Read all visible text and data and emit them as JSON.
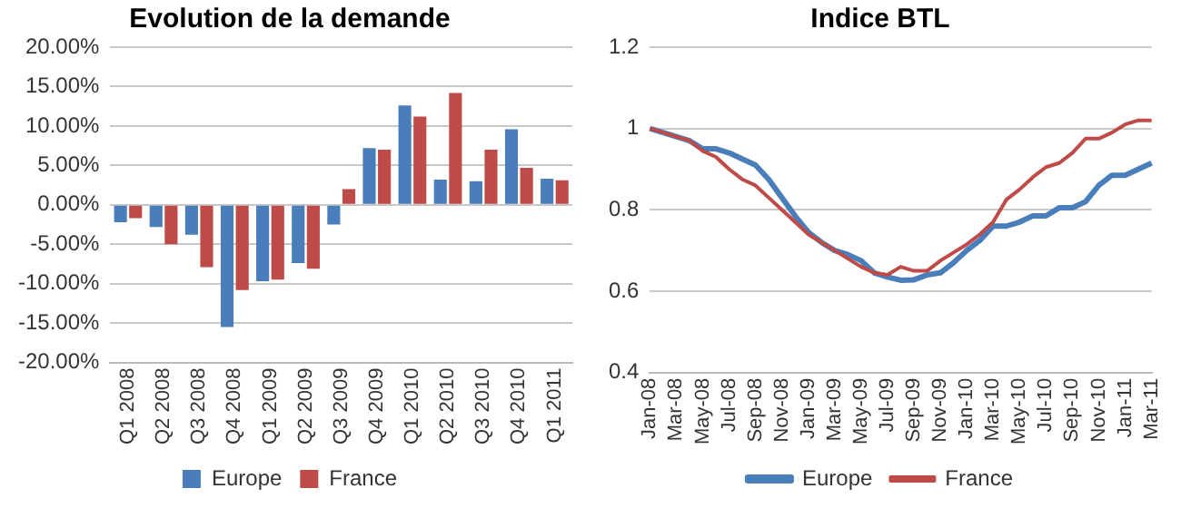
{
  "chart_data": [
    {
      "type": "bar",
      "title": "Evolution de la demande",
      "categories": [
        "Q1 2008",
        "Q2 2008",
        "Q3 2008",
        "Q4 2008",
        "Q1 2009",
        "Q2 2009",
        "Q3 2009",
        "Q4 2009",
        "Q1 2010",
        "Q2 2010",
        "Q3 2010",
        "Q4 2010",
        "Q1 2011"
      ],
      "series": [
        {
          "name": "Europe",
          "color": "#4a7ebb",
          "values": [
            -2.2,
            -2.8,
            -3.8,
            -15.5,
            -9.7,
            -7.4,
            -2.5,
            7.2,
            12.6,
            3.2,
            3.0,
            9.6,
            3.3
          ]
        },
        {
          "name": "France",
          "color": "#be4b48",
          "values": [
            -1.7,
            -5.0,
            -7.9,
            -10.8,
            -9.5,
            -8.1,
            2.0,
            7.0,
            11.2,
            14.2,
            7.0,
            4.7,
            3.1
          ]
        }
      ],
      "ylim": [
        -20,
        20
      ],
      "yticks": [
        {
          "value": -20,
          "label": "-20.00%"
        },
        {
          "value": -15,
          "label": "-15.00%"
        },
        {
          "value": -10,
          "label": "-10.00%"
        },
        {
          "value": -5,
          "label": "-5.00%"
        },
        {
          "value": 0,
          "label": "0.00%"
        },
        {
          "value": 5,
          "label": "5.00%"
        },
        {
          "value": 10,
          "label": "10.00%"
        },
        {
          "value": 15,
          "label": "15.00%"
        },
        {
          "value": 20,
          "label": "20.00%"
        }
      ],
      "grid": "y",
      "legend": "bottom"
    },
    {
      "type": "line",
      "title": "Indice BTL",
      "categories": [
        "Jan-08",
        null,
        "Mar-08",
        null,
        "May-08",
        null,
        "Jul-08",
        null,
        "Sep-08",
        null,
        "Nov-08",
        null,
        "Jan-09",
        null,
        "Mar-09",
        null,
        "May-09",
        null,
        "Jul-09",
        null,
        "Sep-09",
        null,
        "Nov-09",
        null,
        "Jan-10",
        null,
        "Mar-10",
        null,
        "May-10",
        null,
        "Jul-10",
        null,
        "Sep-10",
        null,
        "Nov-10",
        null,
        "Jan-11",
        null,
        "Mar-11"
      ],
      "series": [
        {
          "name": "Europe",
          "color": "#4a7ebb",
          "values": [
            1.0,
            0.99,
            0.98,
            0.97,
            0.95,
            0.95,
            0.94,
            0.925,
            0.91,
            0.875,
            0.83,
            0.785,
            0.745,
            0.72,
            0.7,
            0.69,
            0.675,
            0.645,
            0.635,
            0.627,
            0.628,
            0.64,
            0.645,
            0.67,
            0.7,
            0.725,
            0.76,
            0.76,
            0.77,
            0.785,
            0.785,
            0.805,
            0.805,
            0.82,
            0.86,
            0.885,
            0.885,
            0.9,
            0.915
          ]
        },
        {
          "name": "France",
          "color": "#be4b48",
          "values": [
            1.0,
            0.99,
            0.98,
            0.97,
            0.945,
            0.93,
            0.9,
            0.875,
            0.86,
            0.83,
            0.8,
            0.77,
            0.74,
            0.72,
            0.7,
            0.68,
            0.66,
            0.645,
            0.64,
            0.66,
            0.65,
            0.65,
            0.675,
            0.695,
            0.715,
            0.74,
            0.77,
            0.825,
            0.85,
            0.88,
            0.905,
            0.915,
            0.94,
            0.975,
            0.975,
            0.99,
            1.01,
            1.02,
            1.02
          ]
        }
      ],
      "ylim": [
        0.4,
        1.2
      ],
      "yticks": [
        0.4,
        0.6,
        0.8,
        1,
        1.2
      ],
      "grid": "y",
      "legend": "bottom",
      "marker": "none"
    }
  ]
}
